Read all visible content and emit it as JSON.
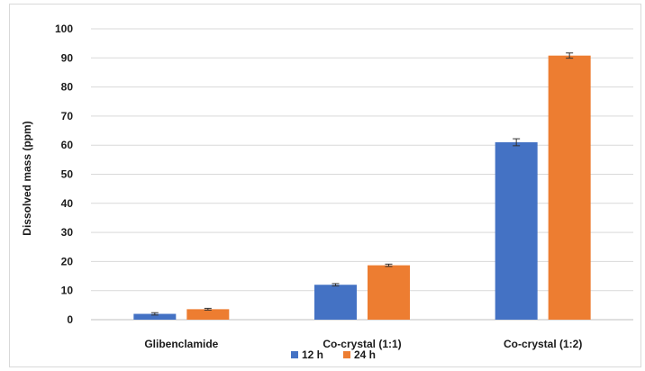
{
  "chart_data": {
    "type": "bar",
    "categories": [
      "Glibenclamide",
      "Co-crystal (1:1)",
      "Co-crystal (1:2)"
    ],
    "series": [
      {
        "name": "12 h",
        "color": "#4472c4",
        "values": [
          2,
          12,
          61
        ],
        "errors": [
          0.4,
          0.4,
          1.2
        ]
      },
      {
        "name": "24 h",
        "color": "#ed7d31",
        "values": [
          3.6,
          18.7,
          90.8
        ],
        "errors": [
          0.3,
          0.4,
          0.9
        ]
      }
    ],
    "xlabel": "",
    "ylabel": "Dissolved mass (ppm)",
    "ylim": [
      0,
      100
    ],
    "yticks": [
      0,
      10,
      20,
      30,
      40,
      50,
      60,
      70,
      80,
      90,
      100
    ],
    "grid": true,
    "legend_position": "bottom"
  }
}
